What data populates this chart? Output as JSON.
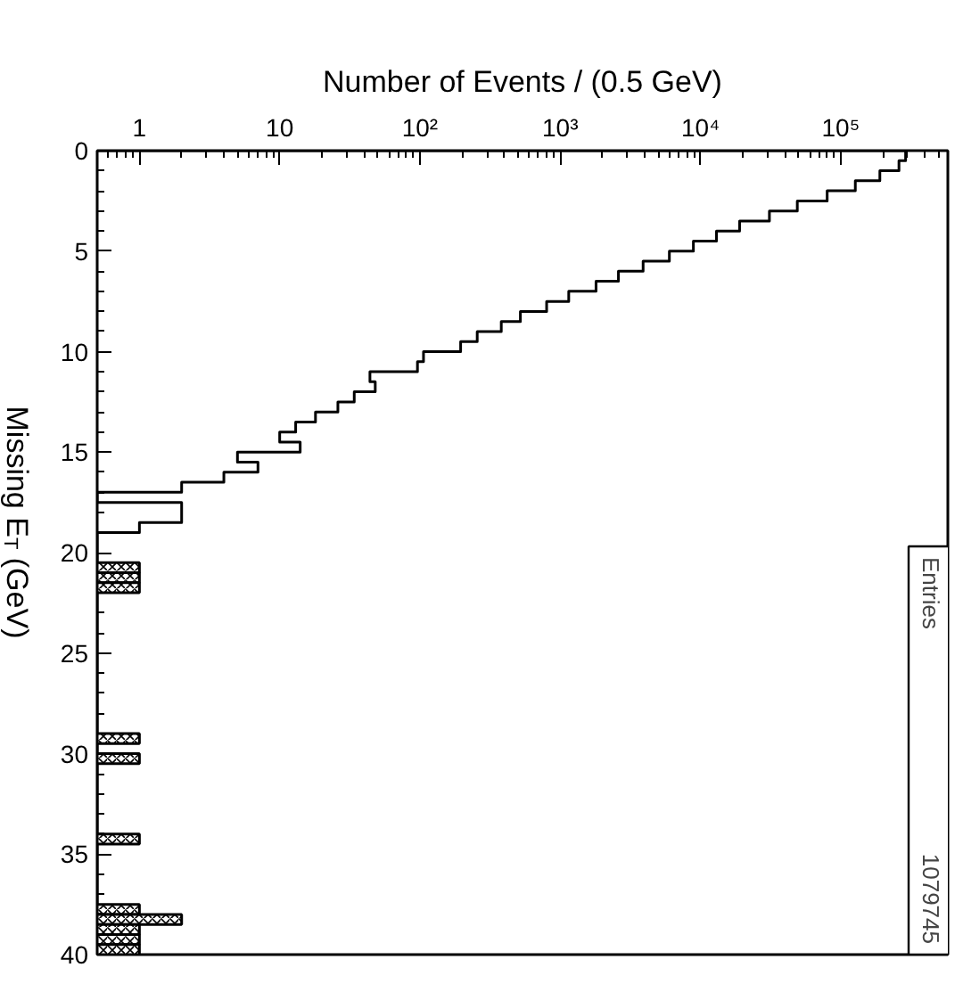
{
  "chart_data": {
    "type": "histogram",
    "orientation": "horizontal",
    "xlabel": "Number of Events / (0.5 GeV)",
    "ylabel": "Missing E$_{T}$ (GeV)",
    "log": "x",
    "grid": false,
    "xlim": [
      0.5,
      580000
    ],
    "xticks": [
      1,
      10,
      {
        "value": 100,
        "label": "10²"
      },
      {
        "value": 1000,
        "label": "10³"
      },
      {
        "value": 10000,
        "label": "10⁴"
      },
      {
        "value": 100000,
        "label": "10⁵"
      }
    ],
    "ylim": [
      40,
      0
    ],
    "yticks": [
      0,
      5,
      10,
      15,
      20,
      25,
      30,
      35,
      40
    ],
    "bins": [
      0,
      0.5,
      1,
      1.5,
      2,
      2.5,
      3,
      3.5,
      4,
      4.5,
      5,
      5.5,
      6,
      6.5,
      7,
      7.5,
      8,
      8.5,
      9,
      9.5,
      10,
      10.5,
      11,
      11.5,
      12,
      12.5,
      13,
      13.5,
      14,
      14.5,
      15,
      15.5,
      16,
      16.5,
      17,
      17.5,
      18,
      18.5,
      19,
      19.5,
      20,
      20.5,
      21,
      21.5,
      22,
      22.5,
      23,
      23.5,
      24,
      24.5,
      25,
      25.5,
      26,
      26.5,
      27,
      27.5,
      28,
      28.5,
      29,
      29.5,
      30,
      30.5,
      31,
      31.5,
      32,
      32.5,
      33,
      33.5,
      34,
      34.5,
      35,
      35.5,
      36,
      36.5,
      37,
      37.5,
      38,
      38.5,
      39,
      39.5,
      40
    ],
    "series": [
      {
        "color": "#000000",
        "values": [
          290000,
          260000,
          190000,
          127000,
          80000,
          49000,
          31000,
          19000,
          13000,
          8900,
          6000,
          3900,
          2600,
          1800,
          1150,
          800,
          520,
          380,
          256,
          195,
          106,
          96,
          44,
          48,
          34,
          26,
          18,
          13,
          10,
          14,
          5,
          7,
          4,
          2,
          null,
          2,
          2,
          1,
          null,
          null,
          null,
          null,
          null,
          null,
          null,
          null,
          null,
          null,
          null,
          null,
          null,
          null,
          null,
          null,
          null,
          null,
          null,
          null,
          null,
          null,
          null,
          null,
          null,
          null,
          null,
          null,
          null,
          null,
          null,
          null,
          null,
          null,
          null,
          null,
          null,
          null,
          null,
          null,
          null,
          null
        ]
      },
      {
        "color": "#000000",
        "values": [
          null,
          null,
          null,
          null,
          null,
          null,
          null,
          null,
          null,
          null,
          null,
          null,
          null,
          null,
          null,
          null,
          null,
          null,
          null,
          null,
          null,
          null,
          null,
          null,
          null,
          null,
          null,
          null,
          null,
          null,
          null,
          null,
          null,
          null,
          null,
          null,
          null,
          null,
          null,
          null,
          null,
          1,
          1,
          1,
          null,
          null,
          null,
          null,
          null,
          null,
          null,
          null,
          null,
          null,
          null,
          null,
          null,
          null,
          1,
          null,
          1,
          null,
          null,
          null,
          null,
          null,
          null,
          null,
          1,
          null,
          null,
          null,
          null,
          null,
          null,
          1,
          2,
          1,
          1,
          1
        ]
      }
    ],
    "annotations": [
      "Entries",
      "1079745"
    ]
  }
}
